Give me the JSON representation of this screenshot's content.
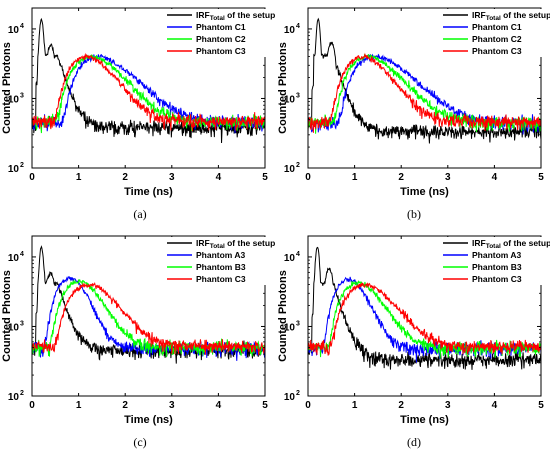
{
  "chart_data": [
    {
      "type": "line",
      "panel": "a",
      "caption": "(a)",
      "xlabel": "Time (ns)",
      "ylabel": "Counted Photons",
      "xlim": [
        0,
        5
      ],
      "ylim": [
        100,
        20000
      ],
      "yscale": "log",
      "x_ticks": [
        "0",
        "1",
        "2",
        "3",
        "4",
        "5"
      ],
      "y_ticks": [
        {
          "base": "10",
          "exp": "2"
        },
        {
          "base": "10",
          "exp": "3"
        },
        {
          "base": "10",
          "exp": "4"
        }
      ],
      "legend_position": "top-right",
      "series": [
        {
          "name_main": "IRF",
          "name_sub": "Total",
          "name_rest": " of the setup",
          "color": "#000000",
          "kind": "irf",
          "peak_t": 0.2,
          "peak": 13000,
          "shoulder_t": 0.4,
          "shoulder": 5500,
          "base_after": 380,
          "base_before": 420
        },
        {
          "name_main": "Phantom C1",
          "color": "#0000ff",
          "kind": "pulse",
          "onset": 0.62,
          "peak_t": 1.42,
          "peak": 4000,
          "baseline": 450,
          "tail_tau": 0.7
        },
        {
          "name_main": "Phantom C2",
          "color": "#00ff00",
          "kind": "pulse",
          "onset": 0.5,
          "peak_t": 1.3,
          "peak": 4000,
          "baseline": 460,
          "tail_tau": 0.6
        },
        {
          "name_main": "Phantom C3",
          "color": "#ff0000",
          "kind": "pulse",
          "onset": 0.45,
          "peak_t": 1.2,
          "peak": 4000,
          "baseline": 470,
          "tail_tau": 0.52
        }
      ]
    },
    {
      "type": "line",
      "panel": "b",
      "caption": "(b)",
      "xlabel": "Time (ns)",
      "ylabel": "Counted Photons",
      "xlim": [
        0,
        5
      ],
      "ylim": [
        100,
        20000
      ],
      "yscale": "log",
      "x_ticks": [
        "0",
        "1",
        "2",
        "3",
        "4",
        "5"
      ],
      "y_ticks": [
        {
          "base": "10",
          "exp": "2"
        },
        {
          "base": "10",
          "exp": "3"
        },
        {
          "base": "10",
          "exp": "4"
        }
      ],
      "legend_position": "top-right",
      "series": [
        {
          "name_main": "IRF",
          "name_sub": "Total",
          "name_rest": " of the setup",
          "color": "#000000",
          "kind": "irf",
          "peak_t": 0.22,
          "peak": 13500,
          "shoulder_t": 0.5,
          "shoulder": 6000,
          "base_after": 330,
          "base_before": 450
        },
        {
          "name_main": "Phantom C1",
          "color": "#0000ff",
          "kind": "pulse",
          "onset": 0.62,
          "peak_t": 1.45,
          "peak": 4000,
          "baseline": 440,
          "tail_tau": 0.72
        },
        {
          "name_main": "Phantom C2",
          "color": "#00ff00",
          "kind": "pulse",
          "onset": 0.52,
          "peak_t": 1.3,
          "peak": 4000,
          "baseline": 450,
          "tail_tau": 0.62
        },
        {
          "name_main": "Phantom C3",
          "color": "#ff0000",
          "kind": "pulse",
          "onset": 0.45,
          "peak_t": 1.2,
          "peak": 4000,
          "baseline": 460,
          "tail_tau": 0.52
        }
      ]
    },
    {
      "type": "line",
      "panel": "c",
      "caption": "(c)",
      "xlabel": "Time (ns)",
      "ylabel": "Counted Photons",
      "xlim": [
        0,
        5
      ],
      "ylim": [
        100,
        20000
      ],
      "yscale": "log",
      "x_ticks": [
        "0",
        "1",
        "2",
        "3",
        "4",
        "5"
      ],
      "y_ticks": [
        {
          "base": "10",
          "exp": "2"
        },
        {
          "base": "10",
          "exp": "3"
        },
        {
          "base": "10",
          "exp": "4"
        }
      ],
      "legend_position": "top-right",
      "series": [
        {
          "name_main": "IRF",
          "name_sub": "Total",
          "name_rest": " of the setup",
          "color": "#000000",
          "kind": "irf",
          "peak_t": 0.2,
          "peak": 13000,
          "shoulder_t": 0.4,
          "shoulder": 5500,
          "base_after": 450,
          "base_before": 480
        },
        {
          "name_main": "Phantom A3",
          "color": "#0000ff",
          "kind": "pulse",
          "onset": 0.25,
          "peak_t": 0.85,
          "peak": 5000,
          "baseline": 480,
          "tail_tau": 0.33
        },
        {
          "name_main": "Phantom B3",
          "color": "#00ff00",
          "kind": "pulse",
          "onset": 0.35,
          "peak_t": 1.05,
          "peak": 4500,
          "baseline": 500,
          "tail_tau": 0.42
        },
        {
          "name_main": "Phantom C3",
          "color": "#ff0000",
          "kind": "pulse",
          "onset": 0.45,
          "peak_t": 1.25,
          "peak": 4000,
          "baseline": 520,
          "tail_tau": 0.52
        }
      ]
    },
    {
      "type": "line",
      "panel": "d",
      "caption": "(d)",
      "xlabel": "Time (ns)",
      "ylabel": "Counted Photons",
      "xlim": [
        0,
        5
      ],
      "ylim": [
        100,
        20000
      ],
      "yscale": "log",
      "x_ticks": [
        "0",
        "1",
        "2",
        "3",
        "4",
        "5"
      ],
      "y_ticks": [
        {
          "base": "10",
          "exp": "2"
        },
        {
          "base": "10",
          "exp": "3"
        },
        {
          "base": "10",
          "exp": "4"
        }
      ],
      "legend_position": "top-right",
      "series": [
        {
          "name_main": "IRF",
          "name_sub": "Total",
          "name_rest": " of the setup",
          "color": "#000000",
          "kind": "irf",
          "peak_t": 0.2,
          "peak": 13500,
          "shoulder_t": 0.45,
          "shoulder": 6500,
          "base_after": 330,
          "base_before": 450
        },
        {
          "name_main": "Phantom A3",
          "color": "#0000ff",
          "kind": "pulse",
          "onset": 0.3,
          "peak_t": 0.9,
          "peak": 4800,
          "baseline": 470,
          "tail_tau": 0.35
        },
        {
          "name_main": "Phantom B3",
          "color": "#00ff00",
          "kind": "pulse",
          "onset": 0.4,
          "peak_t": 1.1,
          "peak": 4300,
          "baseline": 490,
          "tail_tau": 0.45
        },
        {
          "name_main": "Phantom C3",
          "color": "#ff0000",
          "kind": "pulse",
          "onset": 0.45,
          "peak_t": 1.25,
          "peak": 4000,
          "baseline": 510,
          "tail_tau": 0.55
        }
      ]
    }
  ]
}
